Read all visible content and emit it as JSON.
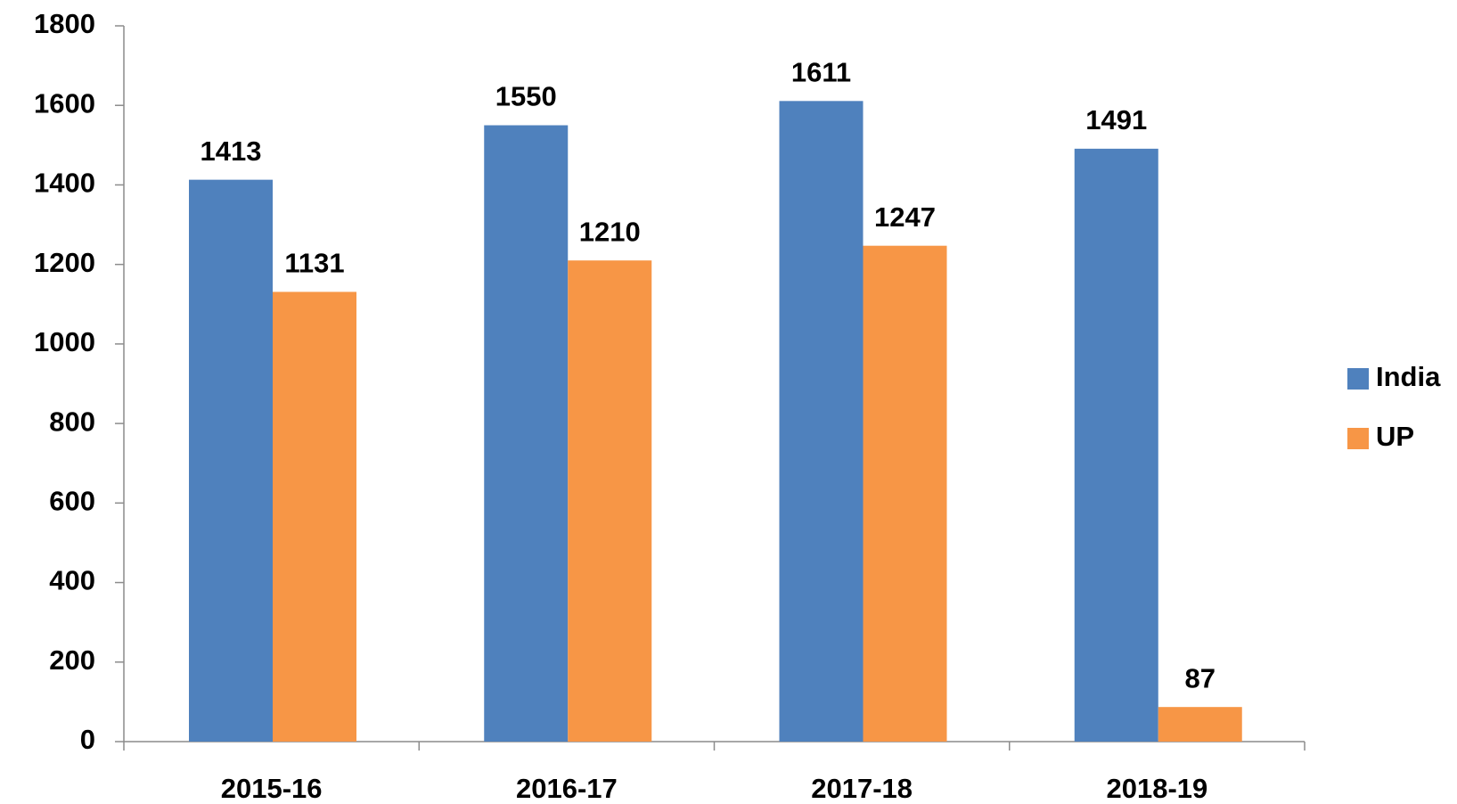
{
  "chart_data": {
    "type": "bar",
    "categories": [
      "2015-16",
      "2016-17",
      "2017-18",
      "2018-19"
    ],
    "series": [
      {
        "name": "India",
        "color": "#4f81bd",
        "values": [
          1413,
          1550,
          1611,
          1491
        ]
      },
      {
        "name": "UP",
        "color": "#f79646",
        "values": [
          1131,
          1210,
          1247,
          87
        ]
      }
    ],
    "ylim": [
      0,
      1800
    ],
    "yticks": [
      0,
      200,
      400,
      600,
      800,
      1000,
      1200,
      1400,
      1600,
      1800
    ],
    "grid": false,
    "legend": "right"
  }
}
